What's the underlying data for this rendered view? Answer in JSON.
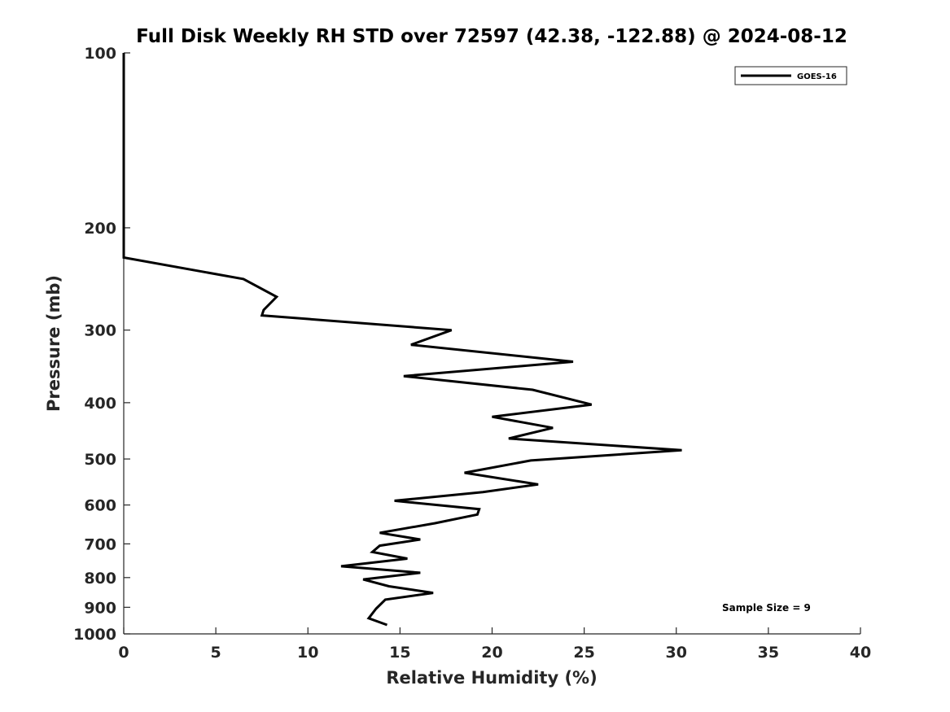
{
  "chart_data": {
    "type": "line",
    "title": "Full Disk Weekly RH STD over 72597 (42.38, -122.88) @ 2024-08-12",
    "xlabel": "Relative Humidity (%)",
    "ylabel": "Pressure (mb)",
    "xlim": [
      0,
      40
    ],
    "ylim": [
      1000,
      100
    ],
    "yscale": "log",
    "y_inverted": true,
    "xticks": [
      0,
      5,
      10,
      15,
      20,
      25,
      30,
      35,
      40
    ],
    "yticks": [
      100,
      200,
      300,
      400,
      500,
      600,
      700,
      800,
      900,
      1000
    ],
    "grid": false,
    "legend": {
      "placement": "top-right",
      "entries": [
        "GOES-16"
      ]
    },
    "annotation": "Sample Size = 9",
    "series": [
      {
        "name": "GOES-16",
        "color": "#000000",
        "x": [
          0,
          0,
          0,
          0,
          0,
          6.5,
          8.3,
          7.6,
          7.5,
          17.8,
          15.6,
          24.4,
          15.2,
          22.2,
          25.4,
          20.0,
          23.3,
          20.9,
          30.3,
          22.1,
          18.5,
          22.5,
          19.5,
          14.7,
          19.3,
          19.2,
          16.9,
          13.9,
          16.1,
          13.9,
          13.5,
          15.4,
          11.8,
          16.1,
          13.0,
          14.4,
          16.8,
          14.2,
          13.7,
          13.3,
          14.3
        ],
        "y": [
          100,
          150,
          200,
          215,
          225,
          245,
          263,
          277,
          283,
          300,
          318,
          340,
          360,
          380,
          403,
          423,
          442,
          461,
          483,
          503,
          528,
          553,
          570,
          590,
          610,
          623,
          645,
          670,
          688,
          705,
          723,
          742,
          765,
          785,
          806,
          828,
          850,
          873,
          905,
          940,
          965
        ]
      }
    ]
  }
}
